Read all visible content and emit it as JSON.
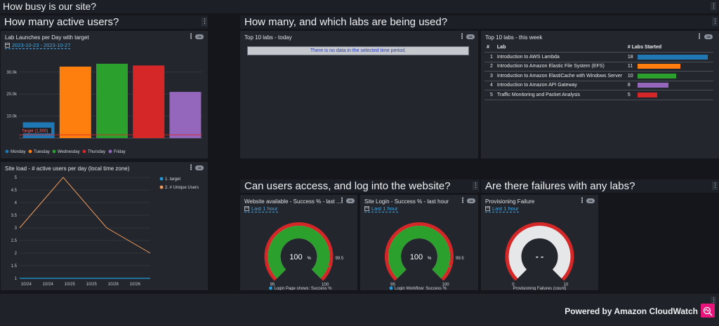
{
  "page": {
    "title": "How busy is our site?",
    "menu_glyph": "⋮"
  },
  "sections": {
    "active_users": "How many active users?",
    "labs_used": "How many, and which labs are being used?",
    "access": "Can users access, and log into the website?",
    "failures": "Are there failures with any labs?"
  },
  "panels": {
    "lab_launches": {
      "title": "Lab Launches per Day with target",
      "range": "2023-10-23 - 2023-10-27",
      "badge": "XB"
    },
    "site_load": {
      "title": "Site load - # active users per day (local time zone)",
      "badge": "XB"
    },
    "top_today": {
      "title": "Top 10 labs - today",
      "no_data": "There is no data in the selected time period.",
      "badge": "XB"
    },
    "top_week": {
      "title": "Top 10 labs - this week",
      "badge": "XB",
      "columns": [
        "#",
        "Lab",
        "# Labs Started"
      ],
      "rows": [
        {
          "n": "1",
          "lab": "Introduction to AWS Lambda",
          "started": "18",
          "value": 18,
          "color": "#1f77b4"
        },
        {
          "n": "2",
          "lab": "Introduction to Amazon Elastic File System (EFS)",
          "started": "11",
          "value": 11,
          "color": "#ff7f0e"
        },
        {
          "n": "3",
          "lab": "Introduction to Amazon ElastiCache with Windows Server",
          "started": "10",
          "value": 10,
          "color": "#2ca02c"
        },
        {
          "n": "4",
          "lab": "Introduction to Amazon API Gateway",
          "started": "8",
          "value": 8,
          "color": "#9467bd"
        },
        {
          "n": "5",
          "lab": "Traffic Monitoring and Packet Analysis",
          "started": "5",
          "value": 5,
          "color": "#d62728"
        }
      ]
    },
    "website": {
      "title": "Website available - Success % - last ...",
      "range": "Last 1 hour",
      "badge": "XB",
      "value": "100",
      "unit": "%",
      "fraction": 1.0,
      "min": "95",
      "max": "100",
      "threshold": "99.5",
      "legend": "Login Page shows: Success %"
    },
    "login": {
      "title": "Site Login - Success % - last hour",
      "range": "Last 1 hour",
      "badge": "XB",
      "value": "100",
      "unit": "%",
      "fraction": 1.0,
      "min": "95",
      "max": "100",
      "threshold": "99.5",
      "legend": "Login Workflow: Success %"
    },
    "provisioning": {
      "title": "Provisioning Failure",
      "range": "Last 1 hour",
      "badge": "XB",
      "value": "- -",
      "min": "0",
      "max": "10",
      "legend": "Provisioning Failures (count)"
    }
  },
  "footer": {
    "powered": "Powered by Amazon CloudWatch"
  },
  "colors": {
    "blue": "#1f77b4",
    "orange": "#ff7f0e",
    "green": "#2ca02c",
    "red": "#d62728",
    "purple": "#9467bd",
    "accent": "#44a9e9"
  },
  "chart_data": [
    {
      "type": "bar",
      "title": "Lab Launches per Day with target",
      "categories": [
        "Monday",
        "Tuesday",
        "Wednesday",
        "Thursday",
        "Friday"
      ],
      "values": [
        7200,
        32500,
        33800,
        33000,
        21000
      ],
      "colors": [
        "#1f77b4",
        "#ff7f0e",
        "#2ca02c",
        "#d62728",
        "#9467bd"
      ],
      "yticks": [
        "10.0k",
        "20.0k",
        "30.0k"
      ],
      "ytick_values": [
        10000,
        20000,
        30000
      ],
      "ylim": [
        0,
        36000
      ],
      "annotation": {
        "label": "Target (1,500)",
        "value": 1500
      },
      "legend": "bottom",
      "grid": true
    },
    {
      "type": "line",
      "title": "Site load - # active users per day (local time zone)",
      "x": [
        0,
        1,
        2,
        3,
        4,
        5
      ],
      "xtick_labels": [
        "10/24",
        "10/24",
        "10/25",
        "10/25",
        "10/26",
        "10/26"
      ],
      "xtick_positions": [
        0.3,
        1.3,
        2.3,
        3.3,
        4.3,
        5.3
      ],
      "yticks": [
        "1",
        "1.5",
        "2",
        "2.5",
        "3",
        "3.5",
        "4",
        "4.5",
        "5"
      ],
      "ylim": [
        1,
        5
      ],
      "series": [
        {
          "name": "1. target",
          "color": "#1f9de0",
          "points": [
            [
              0,
              1
            ],
            [
              6,
              1
            ]
          ]
        },
        {
          "name": "2. # Unique Users",
          "color": "#f39c5a",
          "points": [
            [
              0,
              3
            ],
            [
              2,
              5
            ],
            [
              4,
              3
            ],
            [
              6,
              2
            ]
          ]
        }
      ],
      "legend": "right",
      "grid": true
    }
  ]
}
